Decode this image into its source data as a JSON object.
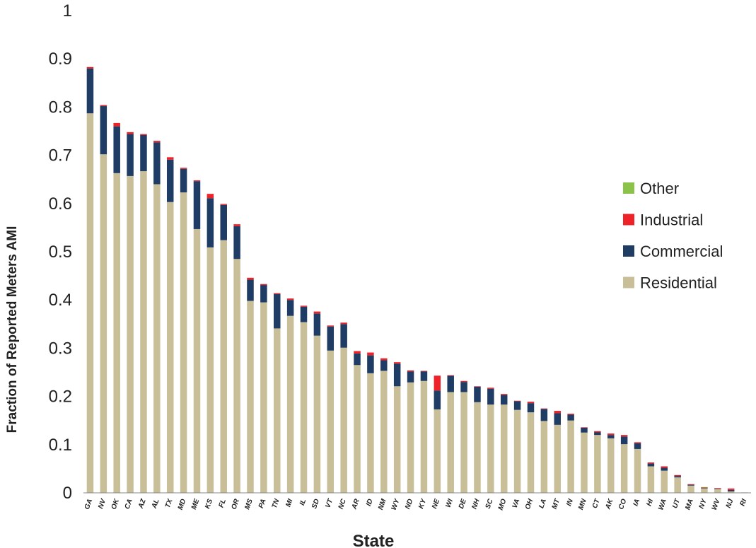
{
  "chart_data": {
    "type": "bar",
    "stacked": true,
    "xlabel": "State",
    "ylabel": "Fraction of Reported Meters  AMI",
    "ylim": [
      0,
      1
    ],
    "yticks": [
      "0",
      "0.1",
      "0.2",
      "0.3",
      "0.4",
      "0.5",
      "0.6",
      "0.7",
      "0.8",
      "0.9",
      "1"
    ],
    "grid": false,
    "legend_position": "right",
    "categories": [
      "GA",
      "NV",
      "OK",
      "CA",
      "AZ",
      "AL",
      "TX",
      "MD",
      "ME",
      "KS",
      "FL",
      "OR",
      "MS",
      "PA",
      "TN",
      "MI",
      "IL",
      "SD",
      "VT",
      "NC",
      "AR",
      "ID",
      "NM",
      "WY",
      "ND",
      "KY",
      "NE",
      "WI",
      "DE",
      "NH",
      "SC",
      "MO",
      "VA",
      "OH",
      "LA",
      "MT",
      "IN",
      "MN",
      "CT",
      "AK",
      "CO",
      "IA",
      "HI",
      "WA",
      "UT",
      "MA",
      "NY",
      "WV",
      "NJ",
      "RI"
    ],
    "series": [
      {
        "name": "Residential",
        "color": "#c8bf99",
        "values": [
          0.787,
          0.702,
          0.663,
          0.657,
          0.667,
          0.64,
          0.603,
          0.623,
          0.547,
          0.509,
          0.524,
          0.485,
          0.398,
          0.395,
          0.341,
          0.367,
          0.354,
          0.326,
          0.295,
          0.301,
          0.265,
          0.248,
          0.253,
          0.221,
          0.229,
          0.232,
          0.173,
          0.209,
          0.209,
          0.188,
          0.183,
          0.183,
          0.172,
          0.167,
          0.149,
          0.141,
          0.15,
          0.125,
          0.12,
          0.113,
          0.101,
          0.091,
          0.055,
          0.046,
          0.032,
          0.015,
          0.009,
          0.008,
          0.003,
          0.001
        ]
      },
      {
        "name": "Commercial",
        "color": "#1f3c64",
        "values": [
          0.093,
          0.1,
          0.097,
          0.087,
          0.075,
          0.087,
          0.088,
          0.049,
          0.099,
          0.102,
          0.073,
          0.068,
          0.044,
          0.036,
          0.071,
          0.033,
          0.032,
          0.046,
          0.05,
          0.049,
          0.024,
          0.037,
          0.022,
          0.047,
          0.023,
          0.02,
          0.039,
          0.034,
          0.021,
          0.032,
          0.033,
          0.02,
          0.018,
          0.019,
          0.025,
          0.024,
          0.012,
          0.01,
          0.006,
          0.007,
          0.016,
          0.012,
          0.006,
          0.006,
          0.003,
          0.002,
          0.001,
          0.001,
          0.003,
          0.0
        ]
      },
      {
        "name": "Industrial",
        "color": "#ee2229",
        "values": [
          0.003,
          0.002,
          0.007,
          0.004,
          0.002,
          0.003,
          0.005,
          0.002,
          0.002,
          0.009,
          0.002,
          0.004,
          0.004,
          0.002,
          0.002,
          0.003,
          0.002,
          0.004,
          0.002,
          0.003,
          0.005,
          0.006,
          0.004,
          0.003,
          0.002,
          0.001,
          0.031,
          0.001,
          0.002,
          0.001,
          0.002,
          0.002,
          0.001,
          0.003,
          0.001,
          0.005,
          0.002,
          0.001,
          0.002,
          0.003,
          0.003,
          0.002,
          0.002,
          0.003,
          0.002,
          0.001,
          0.001,
          0.001,
          0.003,
          0.0
        ]
      },
      {
        "name": "Other",
        "color": "#8bc34a",
        "values": [
          0,
          0,
          0,
          0,
          0,
          0,
          0,
          0,
          0,
          0,
          0,
          0,
          0,
          0,
          0,
          0,
          0,
          0,
          0,
          0,
          0,
          0,
          0,
          0,
          0,
          0,
          0,
          0,
          0,
          0,
          0,
          0,
          0,
          0,
          0,
          0,
          0,
          0,
          0,
          0,
          0,
          0,
          0,
          0,
          0,
          0,
          0.001,
          0,
          0,
          0
        ]
      }
    ],
    "legend_order": [
      "Other",
      "Industrial",
      "Commercial",
      "Residential"
    ]
  }
}
